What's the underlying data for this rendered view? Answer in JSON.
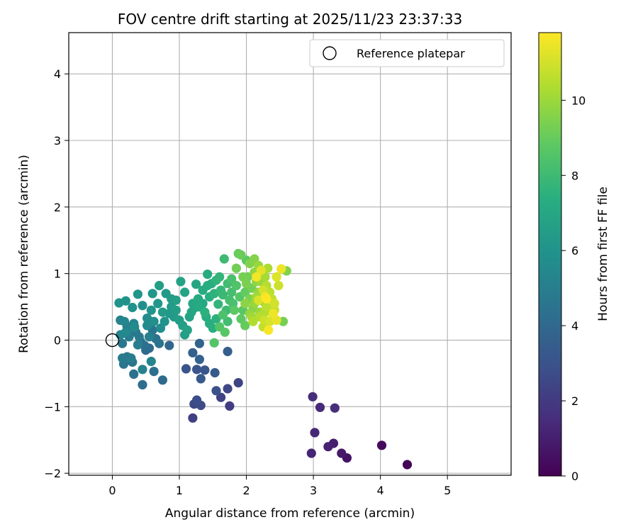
{
  "chart_data": {
    "type": "scatter",
    "title": "FOV centre drift starting at 2025/11/23 23:37:33",
    "xlabel": "Angular distance from reference (arcmin)",
    "ylabel": "Rotation from reference (arcmin)",
    "colorbar_label": "Hours from first FF file",
    "xlim": [
      -0.65,
      5.95
    ],
    "ylim": [
      -2.03,
      4.62
    ],
    "xticks": [
      0,
      1,
      2,
      3,
      4,
      5
    ],
    "yticks": [
      -2,
      -1,
      0,
      1,
      2,
      3,
      4
    ],
    "colorbar_ticks": [
      0,
      2,
      4,
      6,
      8,
      10
    ],
    "color_range": [
      0,
      11.8
    ],
    "grid": true,
    "legend": {
      "location": "top-right",
      "entries": [
        "Reference platepar"
      ]
    },
    "reference": {
      "x": 0,
      "y": 0
    },
    "points": [
      [
        4.4,
        -1.87,
        0.1
      ],
      [
        4.02,
        -1.58,
        0.3
      ],
      [
        3.5,
        -1.77,
        0.6
      ],
      [
        3.42,
        -1.7,
        0.8
      ],
      [
        3.3,
        -1.55,
        1.0
      ],
      [
        3.22,
        -1.6,
        1.1
      ],
      [
        2.97,
        -1.7,
        1.2
      ],
      [
        3.02,
        -1.39,
        1.3
      ],
      [
        3.1,
        -1.01,
        1.4
      ],
      [
        2.99,
        -0.85,
        1.5
      ],
      [
        3.32,
        -1.02,
        1.6
      ],
      [
        1.75,
        -0.99,
        2.1
      ],
      [
        1.2,
        -1.17,
        2.2
      ],
      [
        1.62,
        -0.86,
        2.3
      ],
      [
        1.88,
        -0.64,
        2.4
      ],
      [
        1.72,
        -0.73,
        2.5
      ],
      [
        1.22,
        -0.96,
        2.6
      ],
      [
        1.32,
        -0.98,
        2.7
      ],
      [
        1.26,
        -0.9,
        2.8
      ],
      [
        1.55,
        -0.76,
        2.9
      ],
      [
        1.1,
        -0.43,
        3.0
      ],
      [
        1.26,
        -0.44,
        3.1
      ],
      [
        1.38,
        -0.45,
        3.2
      ],
      [
        1.32,
        -0.58,
        3.3
      ],
      [
        1.53,
        -0.49,
        3.4
      ],
      [
        1.72,
        -0.17,
        3.5
      ],
      [
        1.2,
        -0.19,
        3.6
      ],
      [
        1.3,
        -0.29,
        3.7
      ],
      [
        1.3,
        -0.05,
        3.8
      ],
      [
        0.85,
        -0.08,
        3.9
      ],
      [
        0.5,
        -0.15,
        4.0
      ],
      [
        0.75,
        -0.6,
        4.1
      ],
      [
        0.45,
        -0.67,
        4.2
      ],
      [
        0.62,
        -0.47,
        4.3
      ],
      [
        0.32,
        -0.51,
        4.4
      ],
      [
        0.3,
        -0.33,
        4.5
      ],
      [
        0.17,
        -0.36,
        4.6
      ],
      [
        0.22,
        -0.25,
        4.7
      ],
      [
        0.15,
        -0.27,
        4.8
      ],
      [
        0.28,
        -0.27,
        4.9
      ],
      [
        0.38,
        -0.07,
        5.0
      ],
      [
        0.55,
        0.05,
        5.1
      ],
      [
        0.45,
        -0.44,
        5.2
      ],
      [
        0.58,
        -0.32,
        5.3
      ],
      [
        0.12,
        0.08,
        5.4
      ],
      [
        0.2,
        0.12,
        5.5
      ],
      [
        0.33,
        0.2,
        5.6
      ],
      [
        0.52,
        0.33,
        5.7
      ],
      [
        0.45,
        0.52,
        5.8
      ],
      [
        0.3,
        0.49,
        5.9
      ],
      [
        0.1,
        0.56,
        6.0
      ],
      [
        0.2,
        0.59,
        6.0
      ],
      [
        0.38,
        0.69,
        6.1
      ],
      [
        0.6,
        0.7,
        6.2
      ],
      [
        0.8,
        0.7,
        6.3
      ],
      [
        0.88,
        0.62,
        6.4
      ],
      [
        0.7,
        0.82,
        6.5
      ],
      [
        0.95,
        0.6,
        6.6
      ],
      [
        1.02,
        0.88,
        6.7
      ],
      [
        1.08,
        0.72,
        6.8
      ],
      [
        1.25,
        0.84,
        6.9
      ],
      [
        1.2,
        0.55,
        7.0
      ],
      [
        1.3,
        0.5,
        7.1
      ],
      [
        1.42,
        0.99,
        7.2
      ],
      [
        1.48,
        0.85,
        7.3
      ],
      [
        1.45,
        0.65,
        7.4
      ],
      [
        1.38,
        0.42,
        7.5
      ],
      [
        1.52,
        0.7,
        7.6
      ],
      [
        1.58,
        0.54,
        7.7
      ],
      [
        1.62,
        0.75,
        7.8
      ],
      [
        1.67,
        1.22,
        8.0
      ],
      [
        1.72,
        0.85,
        8.1
      ],
      [
        1.75,
        0.6,
        8.2
      ],
      [
        1.78,
        0.92,
        8.3
      ],
      [
        1.65,
        0.38,
        8.4
      ],
      [
        1.6,
        0.2,
        8.5
      ],
      [
        1.52,
        -0.04,
        8.6
      ],
      [
        1.68,
        0.12,
        8.7
      ],
      [
        1.82,
        0.45,
        8.8
      ],
      [
        1.88,
        1.3,
        9.0
      ],
      [
        1.92,
        1.28,
        9.1
      ],
      [
        1.85,
        1.08,
        9.2
      ],
      [
        1.95,
        0.95,
        9.3
      ],
      [
        2.0,
        0.85,
        9.4
      ],
      [
        2.05,
        1.15,
        9.5
      ],
      [
        2.12,
        1.22,
        9.6
      ],
      [
        1.98,
        0.55,
        9.7
      ],
      [
        2.05,
        0.4,
        9.8
      ],
      [
        2.18,
        1.12,
        9.9
      ],
      [
        2.22,
        0.88,
        10.0
      ],
      [
        2.15,
        0.65,
        10.1
      ],
      [
        2.28,
        0.95,
        10.2
      ],
      [
        2.32,
        1.08,
        10.3
      ],
      [
        2.1,
        0.28,
        10.4
      ],
      [
        2.2,
        0.35,
        10.5
      ],
      [
        2.3,
        0.5,
        10.6
      ],
      [
        2.38,
        0.62,
        10.7
      ],
      [
        2.42,
        0.45,
        10.8
      ],
      [
        2.48,
        0.82,
        10.9
      ],
      [
        2.25,
        0.75,
        11.0
      ],
      [
        2.35,
        0.28,
        11.1
      ],
      [
        2.45,
        0.95,
        11.2
      ],
      [
        2.22,
        1.05,
        11.3
      ],
      [
        2.52,
        1.07,
        11.5
      ],
      [
        2.28,
        0.65,
        11.6
      ],
      [
        2.33,
        0.15,
        11.7
      ],
      [
        0.12,
        0.3,
        5.2
      ],
      [
        0.18,
        0.28,
        5.4
      ],
      [
        0.22,
        0.2,
        5.0
      ],
      [
        0.27,
        0.18,
        5.1
      ],
      [
        0.32,
        0.25,
        5.3
      ],
      [
        0.35,
        0.12,
        4.7
      ],
      [
        0.4,
        0.05,
        4.8
      ],
      [
        0.42,
        -0.02,
        4.4
      ],
      [
        0.48,
        -0.08,
        4.3
      ],
      [
        0.55,
        -0.12,
        4.2
      ],
      [
        0.25,
        0.05,
        4.9
      ],
      [
        0.15,
        -0.05,
        4.6
      ],
      [
        0.6,
        0.15,
        4.5
      ],
      [
        0.65,
        0.02,
        4.4
      ],
      [
        0.7,
        -0.05,
        4.5
      ],
      [
        0.52,
        0.22,
        5.6
      ],
      [
        0.62,
        0.28,
        5.8
      ],
      [
        0.72,
        0.18,
        5.7
      ],
      [
        0.78,
        0.28,
        6.0
      ],
      [
        0.85,
        0.4,
        6.2
      ],
      [
        0.92,
        0.35,
        6.3
      ],
      [
        0.75,
        0.42,
        6.4
      ],
      [
        0.58,
        0.45,
        6.1
      ],
      [
        0.68,
        0.55,
        6.2
      ],
      [
        0.88,
        0.5,
        6.4
      ],
      [
        0.95,
        0.45,
        6.5
      ],
      [
        1.0,
        0.3,
        6.5
      ],
      [
        1.05,
        0.22,
        6.6
      ],
      [
        1.12,
        0.15,
        6.7
      ],
      [
        1.08,
        0.08,
        6.6
      ],
      [
        1.15,
        0.35,
        6.8
      ],
      [
        1.18,
        0.42,
        6.9
      ],
      [
        1.22,
        0.48,
        6.8
      ],
      [
        1.28,
        0.62,
        7.1
      ],
      [
        1.35,
        0.55,
        7.0
      ],
      [
        1.4,
        0.35,
        7.2
      ],
      [
        1.45,
        0.25,
        7.3
      ],
      [
        1.5,
        0.18,
        7.4
      ],
      [
        1.55,
        0.32,
        7.5
      ],
      [
        1.35,
        0.75,
        7.2
      ],
      [
        1.42,
        0.82,
        7.3
      ],
      [
        1.55,
        0.9,
        7.6
      ],
      [
        1.6,
        0.95,
        7.7
      ],
      [
        1.65,
        0.68,
        7.9
      ],
      [
        1.7,
        0.45,
        8.0
      ],
      [
        1.72,
        0.28,
        8.1
      ],
      [
        1.78,
        0.72,
        8.2
      ],
      [
        1.8,
        0.55,
        8.3
      ],
      [
        1.85,
        0.82,
        8.5
      ],
      [
        1.9,
        0.65,
        8.6
      ],
      [
        1.95,
        0.45,
        8.7
      ],
      [
        1.92,
        0.32,
        8.8
      ],
      [
        1.98,
        0.72,
        8.9
      ],
      [
        2.02,
        0.95,
        9.2
      ],
      [
        2.08,
        0.78,
        9.3
      ],
      [
        2.05,
        0.62,
        9.4
      ],
      [
        2.1,
        0.48,
        9.6
      ],
      [
        2.15,
        0.88,
        9.7
      ],
      [
        2.18,
        0.72,
        9.8
      ],
      [
        2.12,
        0.55,
        9.9
      ],
      [
        2.2,
        0.42,
        10.0
      ],
      [
        2.25,
        0.58,
        10.2
      ],
      [
        2.28,
        0.42,
        10.4
      ],
      [
        2.3,
        0.82,
        10.5
      ],
      [
        2.35,
        0.72,
        10.6
      ],
      [
        2.4,
        0.35,
        10.8
      ],
      [
        2.42,
        0.55,
        11.0
      ],
      [
        2.27,
        0.3,
        10.9
      ],
      [
        2.18,
        0.6,
        11.1
      ],
      [
        2.25,
        0.2,
        10.7
      ],
      [
        2.6,
        1.04,
        9.5
      ],
      [
        2.55,
        0.28,
        9.3
      ],
      [
        2.0,
        1.2,
        8.8
      ],
      [
        2.45,
        0.3,
        11.4
      ],
      [
        2.4,
        0.4,
        11.5
      ],
      [
        2.15,
        0.95,
        11.6
      ],
      [
        2.3,
        0.62,
        11.8
      ],
      [
        2.08,
        0.35,
        10.1
      ],
      [
        1.98,
        0.22,
        9.0
      ],
      [
        2.12,
        1.02,
        9.8
      ]
    ]
  }
}
